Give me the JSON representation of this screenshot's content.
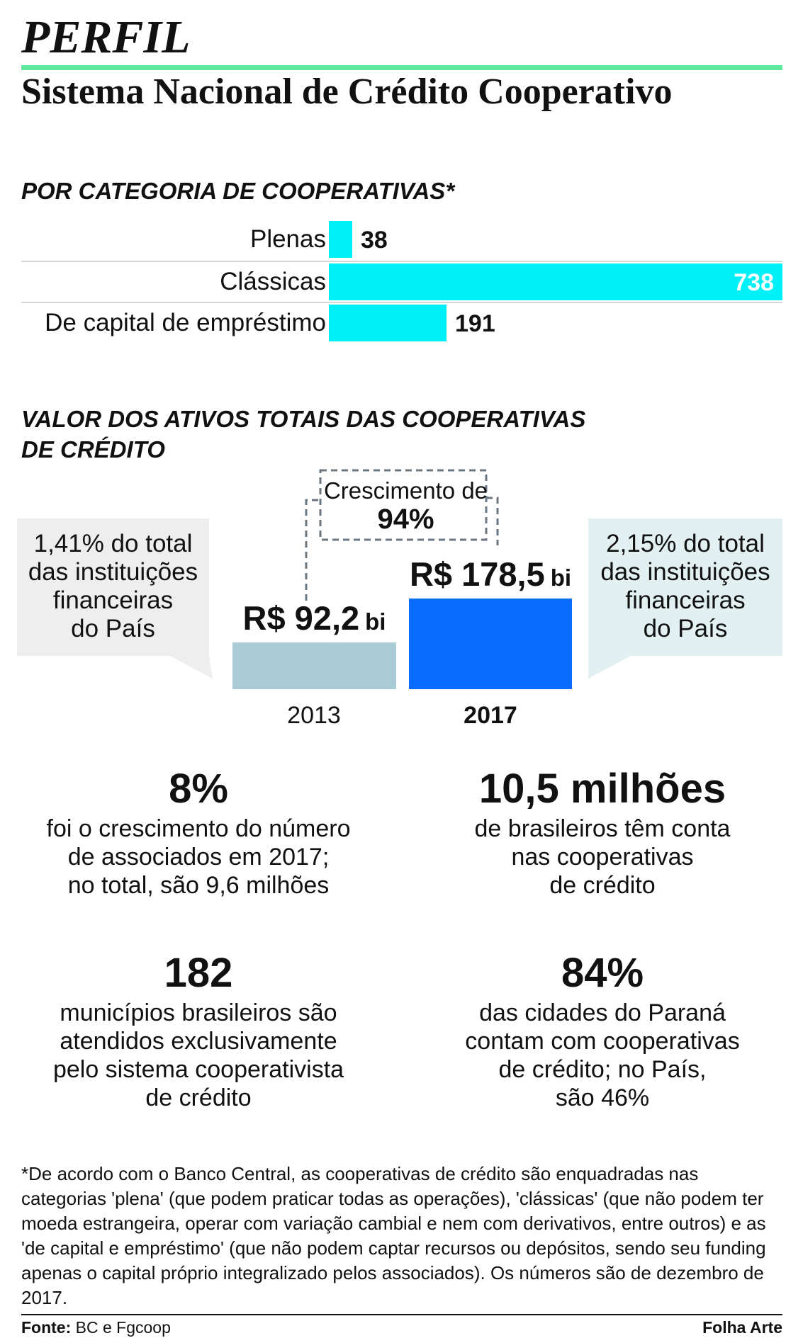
{
  "header": {
    "kicker": "PERFIL",
    "headline": "Sistema Nacional de Crédito Cooperativo",
    "accent_color": "#5fe89b"
  },
  "categories_section": {
    "title": "POR CATEGORIA DE COOPERATIVAS*"
  },
  "assets_section": {
    "title_line1": "VALOR DOS ATIVOS TOTAIS DAS COOPERATIVAS",
    "title_line2": "DE CRÉDITO",
    "growth_label": "Crescimento de",
    "growth_value": "94%",
    "left_note": [
      "1,41% do total",
      "das instituições",
      "financeiras",
      "do País"
    ],
    "right_note": [
      "2,15% do total",
      "das instituições",
      "financeiras",
      "do País"
    ],
    "left_bubble_color": "#eeeeee",
    "right_bubble_color": "#e2f0f1"
  },
  "chart_data": [
    {
      "type": "bar",
      "orientation": "horizontal",
      "title": "POR CATEGORIA DE COOPERATIVAS*",
      "categories": [
        "Plenas",
        "Clássicas",
        "De capital de empréstimo"
      ],
      "values": [
        38,
        738,
        191
      ],
      "value_labels": [
        "38",
        "738",
        "191"
      ],
      "color": "#00f0f8",
      "xlim": [
        0,
        738
      ]
    },
    {
      "type": "bar",
      "orientation": "vertical",
      "title": "VALOR DOS ATIVOS TOTAIS DAS COOPERATIVAS DE CRÉDITO",
      "categories": [
        "2013",
        "2017"
      ],
      "values": [
        92.2,
        178.5
      ],
      "value_labels": [
        "R$ 92,2",
        "R$ 178,5"
      ],
      "unit_label": "bi",
      "colors": [
        "#a8cbd6",
        "#0a6cff"
      ],
      "ylim": [
        0,
        178.5
      ]
    }
  ],
  "stats": [
    {
      "big": "8%",
      "desc": "foi o crescimento do número\nde associados em 2017;\nno total, são 9,6 milhões"
    },
    {
      "big": "10,5 milhões",
      "desc": "de brasileiros têm conta\nnas cooperativas\nde crédito"
    },
    {
      "big": "182",
      "desc": "municípios brasileiros são\natendidos exclusivamente\npelo sistema cooperativista\nde crédito"
    },
    {
      "big": "84%",
      "desc": "das cidades do Paraná\ncontam com cooperativas\nde crédito; no País,\nsão 46%"
    }
  ],
  "footnote": "*De acordo com o Banco Central, as cooperativas de crédito são enquadradas nas categorias 'plena' (que podem praticar todas as operações), 'clássicas' (que não podem ter moeda estrangeira, operar com variação cambial e nem com derivativos, entre outros) e as 'de capital e empréstimo' (que não podem captar recursos ou depósitos, sendo seu funding apenas o capital próprio integralizado pelos associados). Os números são de dezembro de 2017.",
  "footer": {
    "source_label": "Fonte:",
    "source_value": "BC e Fgcoop",
    "credit": "Folha Arte"
  }
}
